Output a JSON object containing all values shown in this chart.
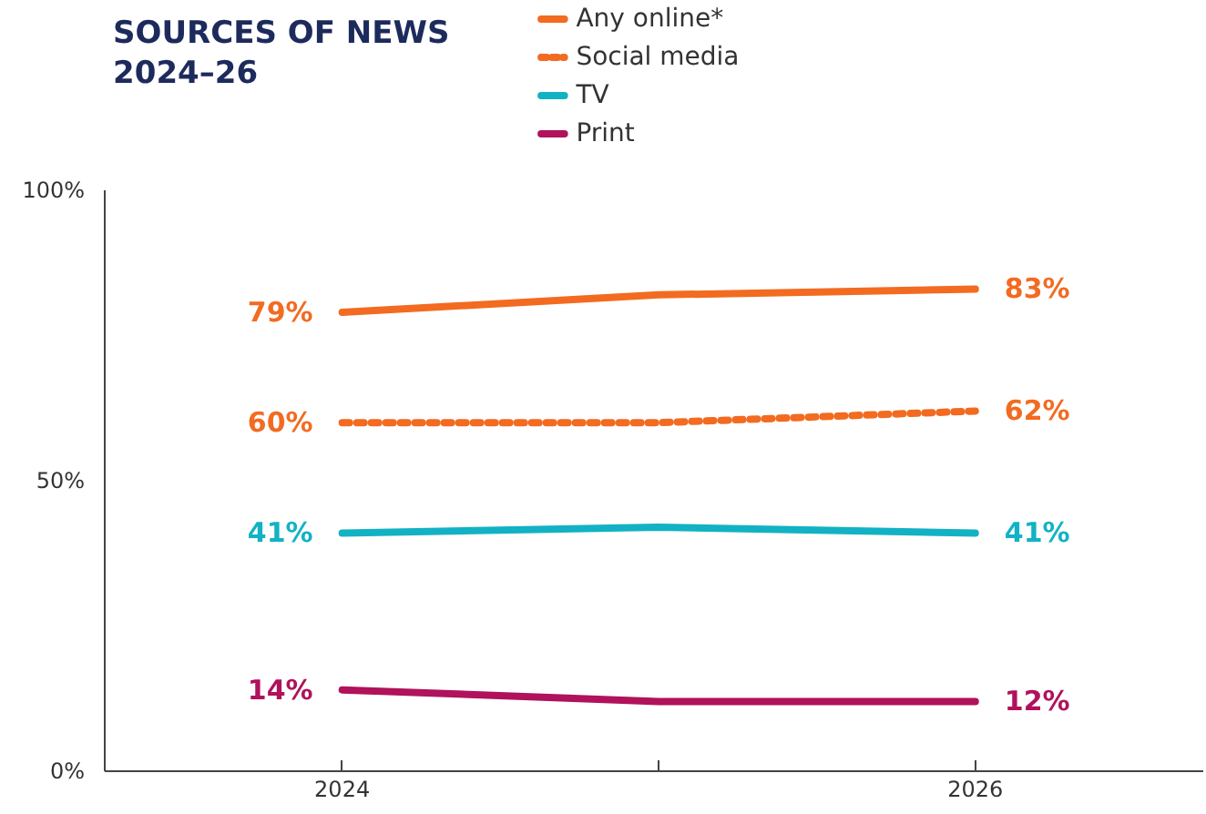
{
  "chart_data": {
    "type": "line",
    "title": "SOURCES OF NEWS",
    "subtitle": "2024–26",
    "x": [
      2024,
      2025,
      2026
    ],
    "series": [
      {
        "name": "Any online*",
        "color": "#f26b21",
        "line_style": "solid",
        "values": [
          79,
          82,
          83
        ],
        "value_labels": [
          "79%",
          null,
          "83%"
        ]
      },
      {
        "name": "Social media",
        "color": "#f26b21",
        "line_style": "dashed",
        "values": [
          60,
          60,
          62
        ],
        "value_labels": [
          "60%",
          null,
          "62%"
        ]
      },
      {
        "name": "TV",
        "color": "#12b2c4",
        "line_style": "solid",
        "values": [
          41,
          42,
          41
        ],
        "value_labels": [
          "41%",
          null,
          "41%"
        ]
      },
      {
        "name": "Print",
        "color": "#b0125b",
        "line_style": "solid",
        "values": [
          14,
          12,
          12
        ],
        "value_labels": [
          "14%",
          null,
          "12%"
        ]
      }
    ],
    "xlim": [
      2023.25,
      2026.72
    ],
    "xticks": [
      2024,
      {
        "value": 2025,
        "label": null
      },
      2026
    ],
    "ylim": [
      0,
      100
    ],
    "yticks": [
      {
        "value": 0,
        "label": "0%"
      },
      {
        "value": 50,
        "label": "50%"
      },
      {
        "value": 100,
        "label": "100%"
      }
    ],
    "grid": false,
    "legend": "top",
    "marker": "none"
  }
}
